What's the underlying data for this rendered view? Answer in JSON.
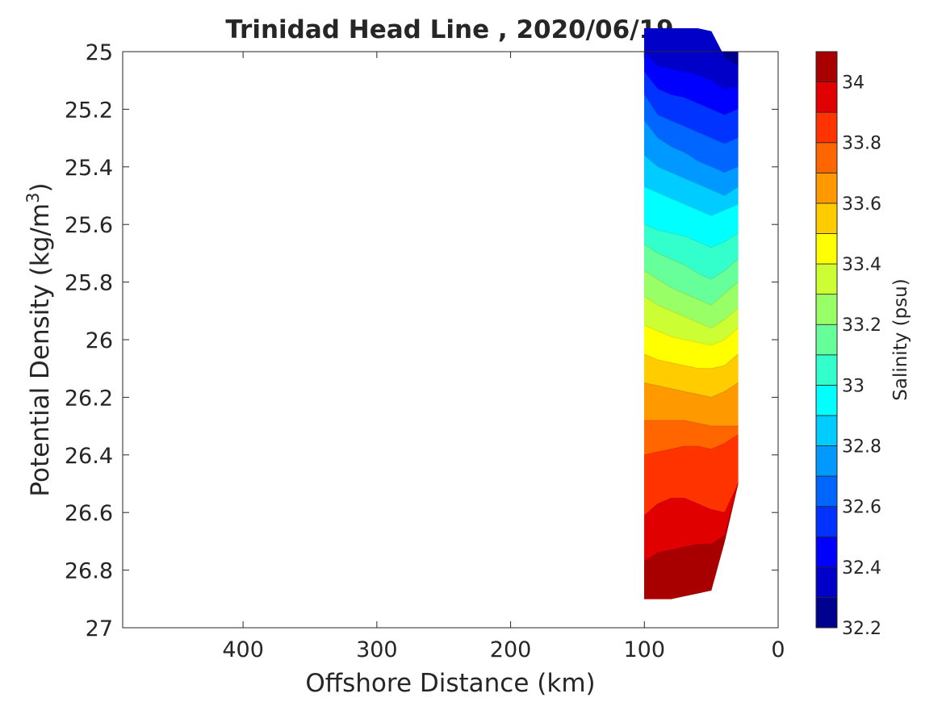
{
  "chart_data": {
    "type": "heatmap",
    "title": "Trinidad Head Line , 2020/06/19",
    "xlabel": "Offshore Distance (km)",
    "ylabel_main": "Potential Density (kg/m",
    "ylabel_sup": "3",
    "ylabel_tail": ")",
    "colorbar_label": "Salinity (psu)",
    "xlim": [
      490,
      0
    ],
    "x_reversed": true,
    "ylim": [
      25,
      27
    ],
    "y_reversed": true,
    "x_ticks": [
      400,
      300,
      200,
      100,
      0
    ],
    "x_tick_labels": [
      "400",
      "300",
      "200",
      "100",
      "0"
    ],
    "y_ticks": [
      25,
      25.2,
      25.4,
      25.6,
      25.8,
      26,
      26.2,
      26.4,
      26.6,
      26.8,
      27
    ],
    "y_tick_labels": [
      "25",
      "25.2",
      "25.4",
      "25.6",
      "25.8",
      "26",
      "26.2",
      "26.4",
      "26.6",
      "26.8",
      "27"
    ],
    "colorbar_range": [
      32.2,
      34.1
    ],
    "colorbar_levels": [
      32.2,
      32.3,
      32.4,
      32.5,
      32.6,
      32.7,
      32.8,
      32.9,
      33.0,
      33.1,
      33.2,
      33.3,
      33.4,
      33.5,
      33.6,
      33.7,
      33.8,
      33.9,
      34.0,
      34.1
    ],
    "colorbar_ticks": [
      32.2,
      32.4,
      32.6,
      32.8,
      33,
      33.2,
      33.4,
      33.6,
      33.8,
      34
    ],
    "colorbar_tick_labels": [
      "32.2",
      "32.4",
      "32.6",
      "32.8",
      "33",
      "33.2",
      "33.4",
      "33.6",
      "33.8",
      "34"
    ],
    "colormap": [
      "#00008f",
      "#0000c9",
      "#0000ff",
      "#0033ff",
      "#0066ff",
      "#0099ff",
      "#00ccff",
      "#00ffff",
      "#33ffcc",
      "#66ff99",
      "#99ff66",
      "#ccff33",
      "#ffff00",
      "#ffcc00",
      "#ff9900",
      "#ff6600",
      "#ff3300",
      "#e00000",
      "#a80000"
    ],
    "stations_km": [
      100,
      90,
      80,
      70,
      60,
      50,
      40,
      30
    ],
    "bottom_density": [
      26.9,
      26.9,
      26.9,
      26.9,
      26.9,
      26.9,
      26.7,
      26.5
    ],
    "isohalines": [
      {
        "salinity": 32.3,
        "density": [
          24.92,
          24.92,
          24.92,
          24.92,
          24.92,
          24.93,
          25.02,
          25.05
        ]
      },
      {
        "salinity": 32.4,
        "density": [
          25.0,
          25.05,
          25.06,
          25.07,
          25.08,
          25.1,
          25.13,
          25.12
        ]
      },
      {
        "salinity": 32.5,
        "density": [
          25.07,
          25.13,
          25.15,
          25.16,
          25.18,
          25.2,
          25.22,
          25.2
        ]
      },
      {
        "salinity": 32.6,
        "density": [
          25.15,
          25.22,
          25.24,
          25.26,
          25.28,
          25.3,
          25.32,
          25.3
        ]
      },
      {
        "salinity": 32.7,
        "density": [
          25.24,
          25.3,
          25.33,
          25.35,
          25.38,
          25.4,
          25.42,
          25.4
        ]
      },
      {
        "salinity": 32.8,
        "density": [
          25.36,
          25.4,
          25.42,
          25.44,
          25.46,
          25.48,
          25.5,
          25.47
        ]
      },
      {
        "salinity": 32.9,
        "density": [
          25.47,
          25.49,
          25.51,
          25.53,
          25.55,
          25.57,
          25.55,
          25.53
        ]
      },
      {
        "salinity": 33.0,
        "density": [
          25.6,
          25.62,
          25.63,
          25.64,
          25.66,
          25.68,
          25.66,
          25.63
        ]
      },
      {
        "salinity": 33.1,
        "density": [
          25.67,
          25.7,
          25.72,
          25.74,
          25.77,
          25.79,
          25.76,
          25.72
        ]
      },
      {
        "salinity": 33.2,
        "density": [
          25.76,
          25.79,
          25.82,
          25.84,
          25.86,
          25.88,
          25.84,
          25.8
        ]
      },
      {
        "salinity": 33.3,
        "density": [
          25.85,
          25.88,
          25.9,
          25.92,
          25.94,
          25.96,
          25.93,
          25.89
        ]
      },
      {
        "salinity": 33.4,
        "density": [
          25.95,
          25.97,
          25.99,
          26.0,
          26.01,
          26.02,
          26.0,
          25.96
        ]
      },
      {
        "salinity": 33.5,
        "density": [
          26.05,
          26.07,
          26.08,
          26.09,
          26.1,
          26.1,
          26.09,
          26.05
        ]
      },
      {
        "salinity": 33.6,
        "density": [
          26.15,
          26.16,
          26.17,
          26.18,
          26.19,
          26.2,
          26.18,
          26.15
        ]
      },
      {
        "salinity": 33.7,
        "density": [
          26.28,
          26.28,
          26.28,
          26.28,
          26.29,
          26.3,
          26.3,
          26.3
        ]
      },
      {
        "salinity": 33.8,
        "density": [
          26.4,
          26.39,
          26.38,
          26.37,
          26.37,
          26.38,
          26.36,
          26.33
        ]
      },
      {
        "salinity": 33.9,
        "density": [
          26.61,
          26.57,
          26.55,
          26.55,
          26.57,
          26.59,
          26.6,
          26.6
        ]
      },
      {
        "salinity": 34.0,
        "density": [
          26.77,
          26.74,
          26.73,
          26.72,
          26.71,
          26.71,
          26.68,
          26.65
        ]
      },
      {
        "salinity": 34.1,
        "density": [
          26.9,
          26.9,
          26.9,
          26.89,
          26.88,
          26.87,
          26.85,
          26.84
        ]
      }
    ]
  }
}
